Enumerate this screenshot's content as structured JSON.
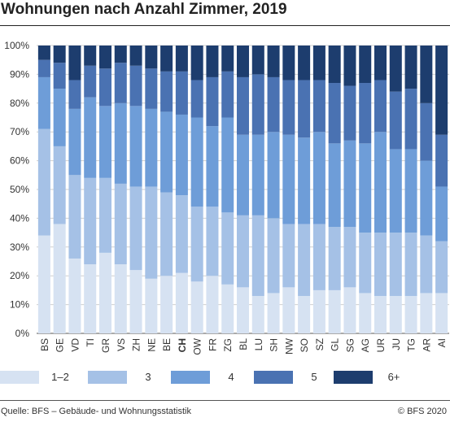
{
  "chart_data": {
    "type": "bar",
    "stacked": true,
    "title": "Wohnungen nach Anzahl Zimmer, 2019",
    "xlabel": "",
    "ylabel": "",
    "ylim": [
      0,
      100
    ],
    "y_ticks": [
      0,
      10,
      20,
      30,
      40,
      50,
      60,
      70,
      80,
      90,
      100
    ],
    "y_tick_suffix": "%",
    "grid": true,
    "legend_position": "bottom",
    "emphasized_category": "CH",
    "categories": [
      "BS",
      "GE",
      "VD",
      "TI",
      "GR",
      "VS",
      "ZH",
      "NE",
      "BE",
      "CH",
      "OW",
      "FR",
      "ZG",
      "BL",
      "LU",
      "SH",
      "NW",
      "SO",
      "SZ",
      "GL",
      "SG",
      "AG",
      "UR",
      "JU",
      "TG",
      "AR",
      "AI"
    ],
    "series": [
      {
        "name": "1–2",
        "color": "#d6e2f2",
        "values": [
          34,
          38,
          26,
          24,
          28,
          24,
          22,
          19,
          20,
          21,
          18,
          20,
          17,
          16,
          13,
          14,
          16,
          13,
          15,
          15,
          16,
          14,
          13,
          13,
          13,
          14,
          14
        ]
      },
      {
        "name": "3",
        "color": "#a5c1e6",
        "values": [
          37,
          27,
          29,
          30,
          26,
          28,
          29,
          32,
          29,
          27,
          26,
          24,
          25,
          25,
          28,
          26,
          22,
          25,
          23,
          22,
          21,
          21,
          22,
          22,
          22,
          20,
          18
        ]
      },
      {
        "name": "4",
        "color": "#6e9dd8",
        "values": [
          18,
          20,
          23,
          28,
          25,
          28,
          28,
          27,
          28,
          28,
          31,
          28,
          33,
          28,
          28,
          30,
          31,
          30,
          32,
          29,
          30,
          31,
          35,
          29,
          29,
          26,
          19
        ]
      },
      {
        "name": "5",
        "color": "#4a72b2",
        "values": [
          6,
          9,
          10,
          11,
          13,
          14,
          14,
          14,
          14,
          15,
          13,
          17,
          16,
          20,
          21,
          19,
          19,
          20,
          18,
          21,
          19,
          21,
          18,
          20,
          21,
          20,
          18
        ]
      },
      {
        "name": "6+",
        "color": "#1d3d6e",
        "values": [
          5,
          6,
          12,
          7,
          8,
          6,
          7,
          8,
          9,
          9,
          12,
          11,
          9,
          11,
          10,
          11,
          12,
          12,
          12,
          13,
          14,
          13,
          12,
          16,
          15,
          20,
          31
        ]
      }
    ]
  },
  "footer": {
    "source": "Quelle: BFS – Gebäude- und Wohnungsstatistik",
    "copyright": "© BFS 2020"
  }
}
